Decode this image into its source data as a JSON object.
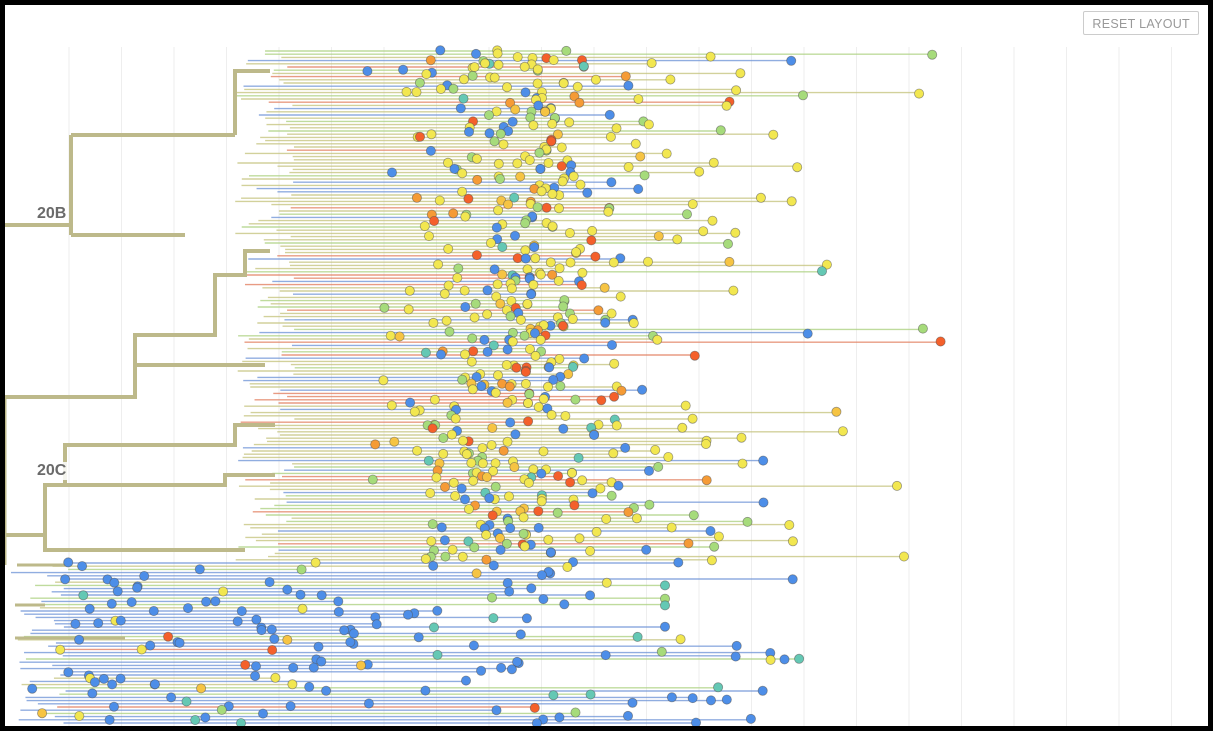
{
  "toolbar": {
    "reset_layout_label": "RESET LAYOUT"
  },
  "tree": {
    "clade_labels": [
      "20B",
      "20C"
    ],
    "branch_colors": {
      "clade_trunk": "#bdb98a",
      "olive": "#c3c27a",
      "blue": "#6b91d6",
      "orange_red": "#e07a5a",
      "green": "#a9cf7c"
    },
    "tip_colors": {
      "yellow": "#f2e750",
      "gold": "#f6c443",
      "orange": "#f59b36",
      "red": "#f4602b",
      "blue": "#4d8ee8",
      "teal": "#64c8b4",
      "light_green": "#a6db7b"
    },
    "grid_color": "#eeeeee",
    "layout": "rectangle"
  }
}
